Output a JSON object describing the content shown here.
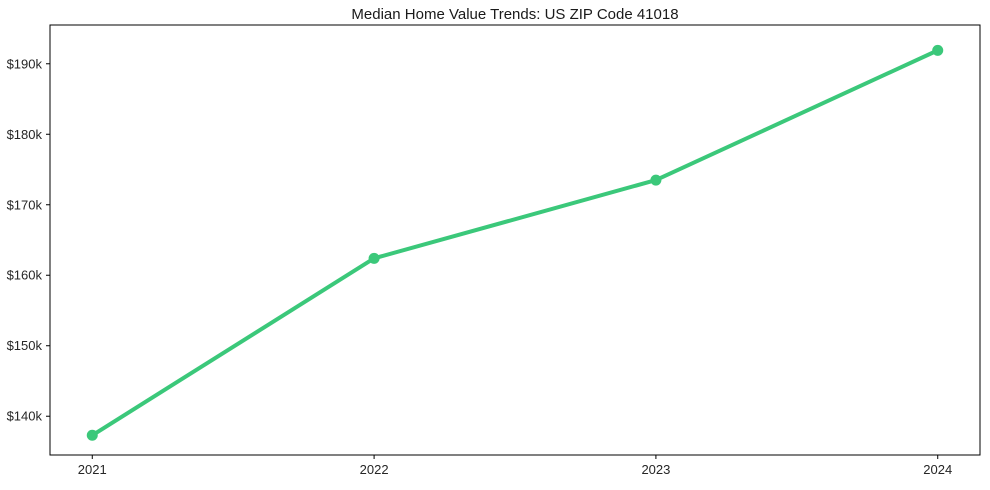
{
  "chart_data": {
    "type": "line",
    "title": "Median Home Value Trends: US ZIP Code 41018",
    "series_name": "Median Home Value",
    "x": [
      2021,
      2022,
      2023,
      2024
    ],
    "values": [
      137300,
      162400,
      173500,
      191900
    ],
    "xlabel": "",
    "ylabel": "",
    "xlim": [
      2020.85,
      2024.15
    ],
    "ylim": [
      134500,
      195500
    ],
    "x_ticks": [
      2021,
      2022,
      2023,
      2024
    ],
    "x_tick_labels": [
      "2021",
      "2022",
      "2023",
      "2024"
    ],
    "y_ticks": [
      140000,
      150000,
      160000,
      170000,
      180000,
      190000
    ],
    "y_tick_labels": [
      "$140k",
      "$150k",
      "$160k",
      "$170k",
      "$180k",
      "$190k"
    ],
    "grid": false,
    "legend_position": "none",
    "line_color": "#3bc87a",
    "marker": "circle",
    "line_width": 4,
    "marker_radius": 5.5,
    "frame_color": "#000000",
    "text_color": "#262626",
    "tick_font_size": 13,
    "title_font_size": 15
  }
}
